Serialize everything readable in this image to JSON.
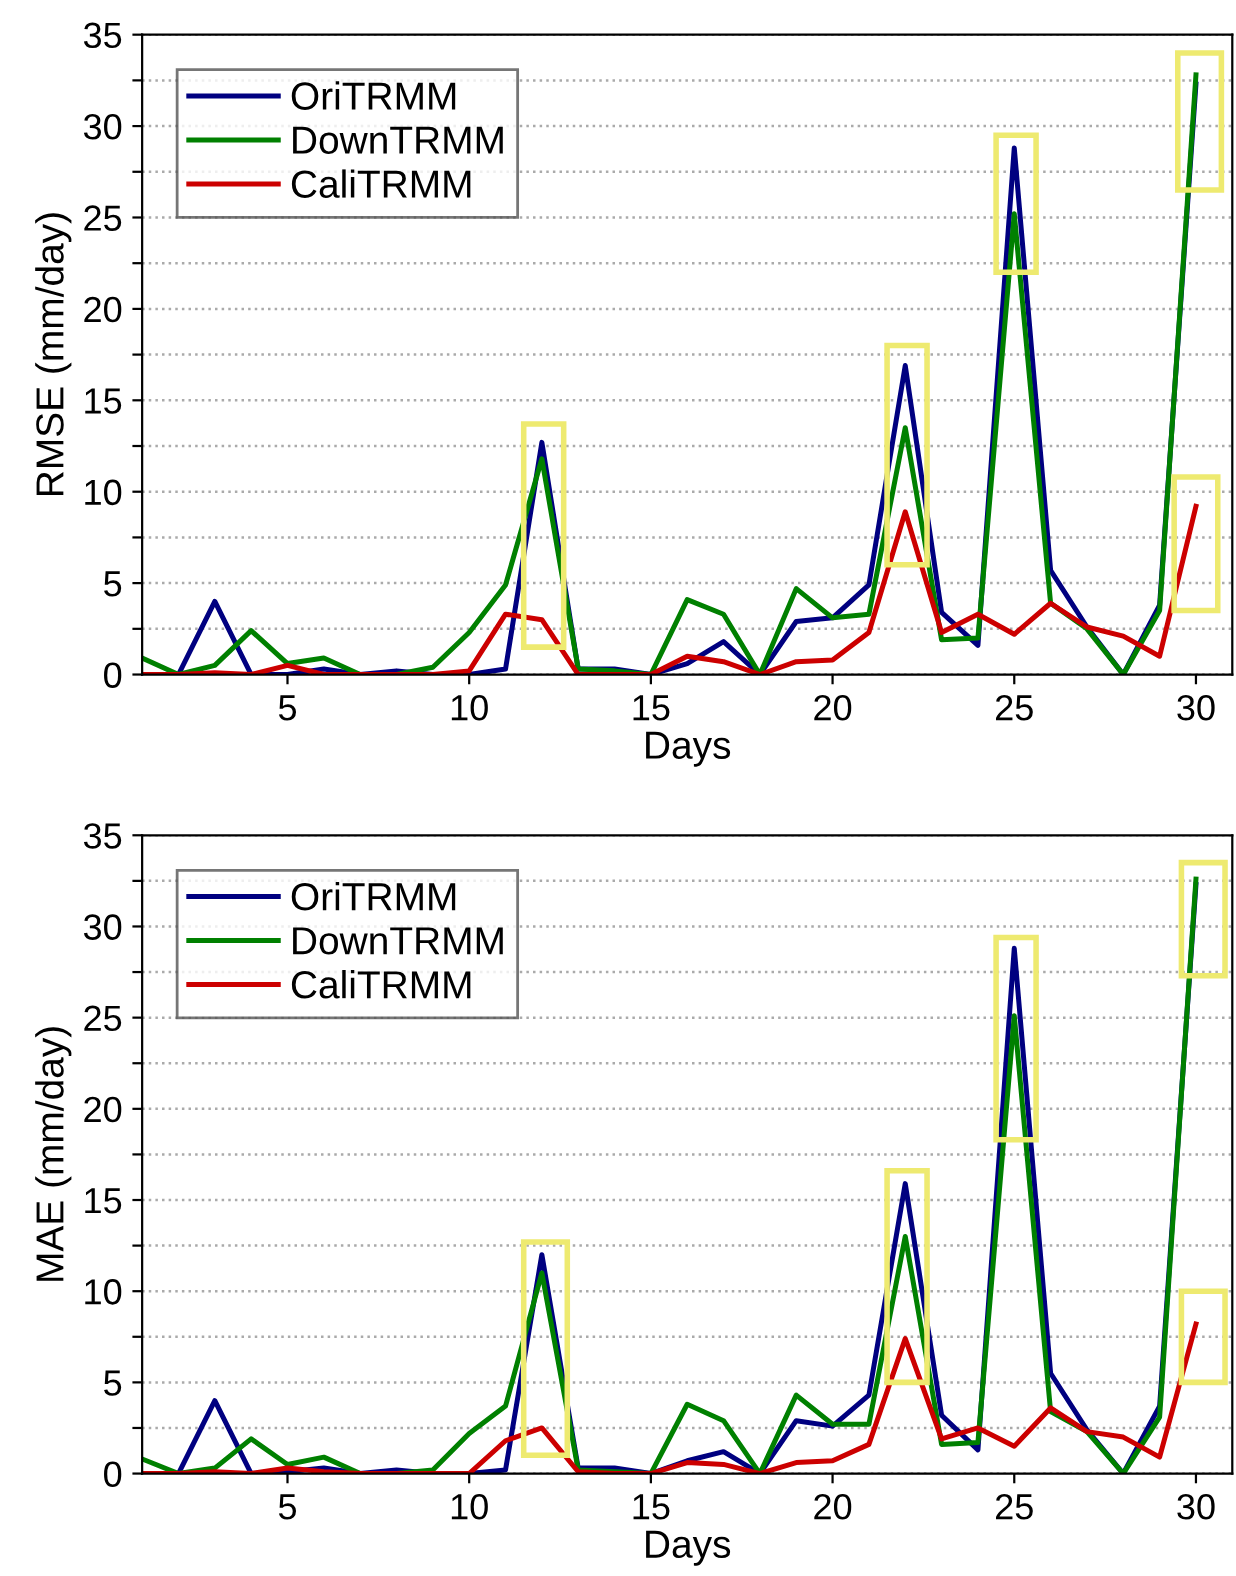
{
  "chart_data": [
    {
      "type": "line",
      "xlabel": "Days",
      "ylabel": "RMSE (mm/day)",
      "x": [
        1,
        2,
        3,
        4,
        5,
        6,
        7,
        8,
        9,
        10,
        11,
        12,
        13,
        14,
        15,
        16,
        17,
        18,
        19,
        20,
        21,
        22,
        23,
        24,
        25,
        26,
        27,
        28,
        29,
        30
      ],
      "xlim": [
        1,
        31
      ],
      "xticks": [
        5,
        10,
        15,
        20,
        25,
        30
      ],
      "ylim": [
        0,
        35
      ],
      "yticks": [
        0,
        {
          "value": 2.5,
          "label": null
        },
        5,
        {
          "value": 7.5,
          "label": null
        },
        10,
        {
          "value": 12.5,
          "label": null
        },
        15,
        {
          "value": 17.5,
          "label": null
        },
        20,
        {
          "value": 22.5,
          "label": null
        },
        25,
        {
          "value": 27.5,
          "label": null
        },
        30,
        {
          "value": 32.5,
          "label": null
        },
        35
      ],
      "grid": "y",
      "legend": "top left",
      "marker": "none",
      "line_style": "solid",
      "series": [
        {
          "name": "OriTRMM",
          "color": "#000080",
          "values": [
            0,
            0,
            4.0,
            0,
            0,
            0.3,
            0,
            0.2,
            0,
            0,
            0.3,
            12.7,
            0.3,
            0.3,
            0,
            0.6,
            1.8,
            0,
            2.9,
            3.1,
            4.9,
            16.9,
            3.4,
            1.6,
            28.8,
            5.7,
            2.6,
            0,
            3.8,
            32.3
          ]
        },
        {
          "name": "DownTRMM",
          "color": "#008000",
          "values": [
            0.9,
            0,
            0.5,
            2.4,
            0.6,
            0.9,
            0,
            0,
            0.4,
            2.3,
            4.9,
            11.8,
            0.3,
            0.2,
            0,
            4.1,
            3.3,
            0,
            4.7,
            3.1,
            3.3,
            13.5,
            1.9,
            2.0,
            25.2,
            3.9,
            2.5,
            0,
            3.5,
            32.8
          ]
        },
        {
          "name": "CaliTRMM",
          "color": "#cc0000",
          "values": [
            0,
            0,
            0.1,
            0,
            0.5,
            0,
            0,
            0,
            0,
            0.2,
            3.3,
            3.0,
            0,
            0,
            0,
            1.0,
            0.7,
            0,
            0.7,
            0.8,
            2.3,
            8.9,
            2.3,
            3.3,
            2.2,
            3.9,
            2.6,
            2.1,
            1.0,
            9.2
          ]
        }
      ]
    },
    {
      "type": "line",
      "xlabel": "Days",
      "ylabel": "MAE (mm/day)",
      "x": [
        1,
        2,
        3,
        4,
        5,
        6,
        7,
        8,
        9,
        10,
        11,
        12,
        13,
        14,
        15,
        16,
        17,
        18,
        19,
        20,
        21,
        22,
        23,
        24,
        25,
        26,
        27,
        28,
        29,
        30
      ],
      "xlim": [
        1,
        31
      ],
      "xticks": [
        5,
        10,
        15,
        20,
        25,
        30
      ],
      "ylim": [
        0,
        35
      ],
      "yticks": [
        0,
        {
          "value": 2.5,
          "label": null
        },
        5,
        {
          "value": 7.5,
          "label": null
        },
        10,
        {
          "value": 12.5,
          "label": null
        },
        15,
        {
          "value": 17.5,
          "label": null
        },
        20,
        {
          "value": 22.5,
          "label": null
        },
        25,
        {
          "value": 27.5,
          "label": null
        },
        30,
        {
          "value": 32.5,
          "label": null
        },
        35
      ],
      "grid": "y",
      "legend": "top left",
      "marker": "none",
      "line_style": "solid",
      "series": [
        {
          "name": "OriTRMM",
          "color": "#000080",
          "values": [
            0,
            0,
            4.0,
            0,
            0.1,
            0.3,
            0,
            0.2,
            0,
            0,
            0.2,
            12.0,
            0.3,
            0.3,
            0,
            0.7,
            1.2,
            0,
            2.9,
            2.6,
            4.3,
            15.9,
            3.2,
            1.3,
            28.8,
            5.5,
            2.4,
            0,
            3.7,
            32.3
          ]
        },
        {
          "name": "DownTRMM",
          "color": "#008000",
          "values": [
            0.8,
            0,
            0.3,
            1.9,
            0.5,
            0.9,
            0,
            0,
            0.2,
            2.2,
            3.7,
            11.0,
            0.2,
            0.1,
            0,
            3.8,
            2.9,
            0,
            4.3,
            2.7,
            2.7,
            13.0,
            1.6,
            1.7,
            25.1,
            3.4,
            2.3,
            0,
            3.1,
            32.6
          ]
        },
        {
          "name": "CaliTRMM",
          "color": "#cc0000",
          "values": [
            0,
            0,
            0.1,
            0,
            0.3,
            0.1,
            0,
            0,
            0,
            0,
            1.8,
            2.5,
            0.1,
            0,
            0,
            0.6,
            0.5,
            0,
            0.6,
            0.7,
            1.6,
            7.4,
            1.9,
            2.5,
            1.5,
            3.6,
            2.3,
            2.0,
            0.9,
            8.2
          ]
        }
      ]
    }
  ]
}
